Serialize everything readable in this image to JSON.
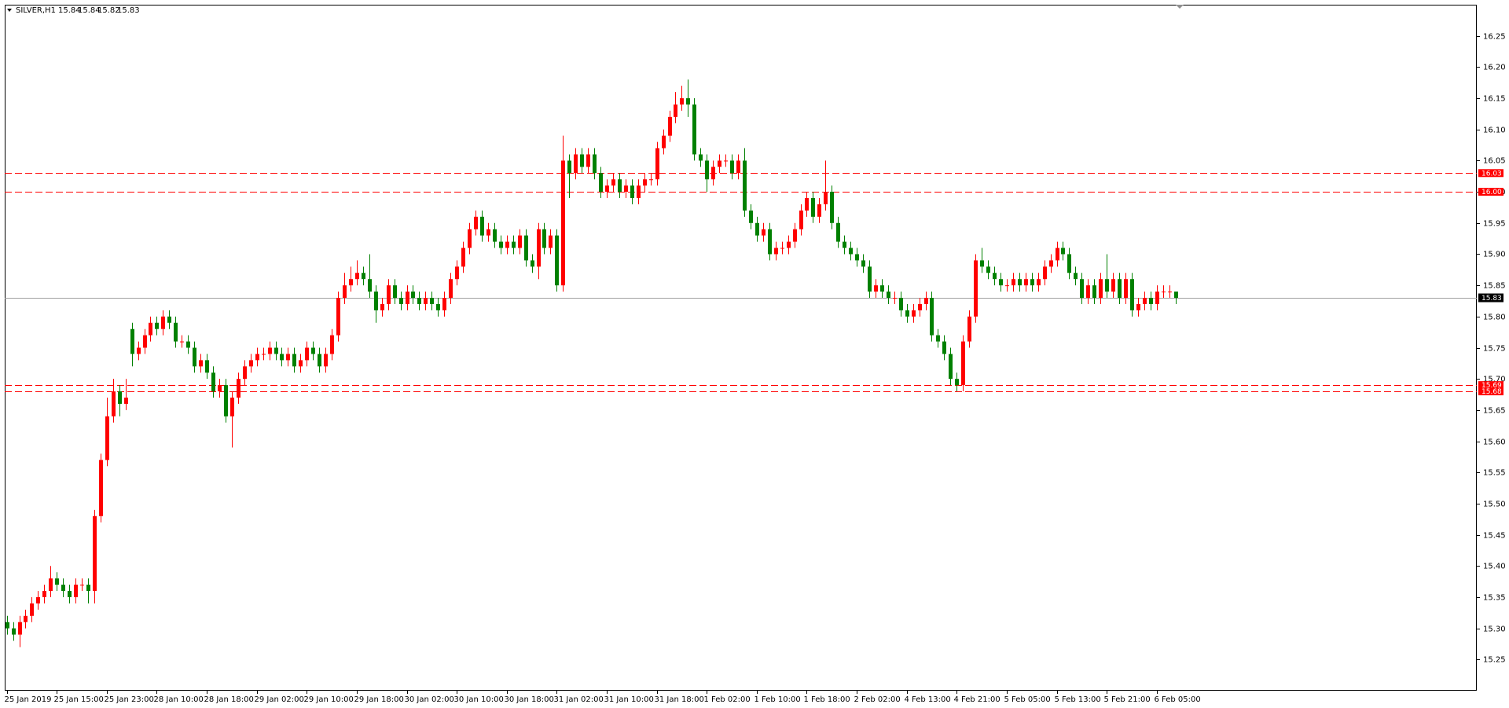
{
  "chart_data": {
    "type": "candlestick",
    "title": "SILVER,H1",
    "header_values": [
      15.84,
      15.84,
      15.82,
      15.83
    ],
    "categories": [
      "25 Jan 2019",
      null,
      null,
      null,
      null,
      null,
      null,
      null,
      "25 Jan 15:00",
      null,
      null,
      null,
      null,
      null,
      null,
      null,
      "25 Jan 23:00",
      null,
      null,
      null,
      null,
      null,
      null,
      null,
      "28 Jan 10:00",
      null,
      null,
      null,
      null,
      null,
      null,
      null,
      "28 Jan 18:00",
      null,
      null,
      null,
      null,
      null,
      null,
      null,
      "29 Jan 02:00",
      null,
      null,
      null,
      null,
      null,
      null,
      null,
      "29 Jan 10:00",
      null,
      null,
      null,
      null,
      null,
      null,
      null,
      "29 Jan 18:00",
      null,
      null,
      null,
      null,
      null,
      null,
      null,
      "30 Jan 02:00",
      null,
      null,
      null,
      null,
      null,
      null,
      null,
      "30 Jan 10:00",
      null,
      null,
      null,
      null,
      null,
      null,
      null,
      "30 Jan 18:00",
      null,
      null,
      null,
      null,
      null,
      null,
      null,
      "31 Jan 02:00",
      null,
      null,
      null,
      null,
      null,
      null,
      null,
      "31 Jan 10:00",
      null,
      null,
      null,
      null,
      null,
      null,
      null,
      "31 Jan 18:00",
      null,
      null,
      null,
      null,
      null,
      null,
      null,
      "1 Feb 02:00",
      null,
      null,
      null,
      null,
      null,
      null,
      null,
      "1 Feb 10:00",
      null,
      null,
      null,
      null,
      null,
      null,
      null,
      "1 Feb 18:00",
      null,
      null,
      null,
      null,
      null,
      null,
      null,
      "2 Feb 02:00",
      null,
      null,
      null,
      null,
      null,
      null,
      null,
      "4 Feb 13:00",
      null,
      null,
      null,
      null,
      null,
      null,
      null,
      "4 Feb 21:00",
      null,
      null,
      null,
      null,
      null,
      null,
      null,
      "5 Feb 05:00",
      null,
      null,
      null,
      null,
      null,
      null,
      null,
      "5 Feb 13:00",
      null,
      null,
      null,
      null,
      null,
      null,
      null,
      "5 Feb 21:00",
      null,
      null,
      null,
      null,
      null,
      null,
      null,
      "6 Feb 05:00",
      null,
      null,
      null
    ],
    "open": [
      15.31,
      15.3,
      15.29,
      15.31,
      15.32,
      15.34,
      15.35,
      15.36,
      15.38,
      15.37,
      15.36,
      15.35,
      15.37,
      15.37,
      15.36,
      15.48,
      15.57,
      15.64,
      15.68,
      15.66,
      15.78,
      15.74,
      15.75,
      15.77,
      15.79,
      15.78,
      15.8,
      15.79,
      15.76,
      15.76,
      15.75,
      15.72,
      15.73,
      15.71,
      15.68,
      15.69,
      15.64,
      15.67,
      15.7,
      15.72,
      15.73,
      15.74,
      15.74,
      15.75,
      15.74,
      15.73,
      15.74,
      15.72,
      15.73,
      15.75,
      15.74,
      15.72,
      15.74,
      15.77,
      15.83,
      15.85,
      15.86,
      15.87,
      15.86,
      15.84,
      15.81,
      15.82,
      15.85,
      15.83,
      15.82,
      15.84,
      15.83,
      15.82,
      15.83,
      15.82,
      15.81,
      15.83,
      15.86,
      15.88,
      15.91,
      15.94,
      15.96,
      15.93,
      15.94,
      15.92,
      15.91,
      15.92,
      15.91,
      15.93,
      15.89,
      15.88,
      15.94,
      15.91,
      15.93,
      15.85,
      16.05,
      16.03,
      16.06,
      16.04,
      16.06,
      16.03,
      16.0,
      16.01,
      16.02,
      16.0,
      16.01,
      15.99,
      16.01,
      16.02,
      16.02,
      16.07,
      16.09,
      16.12,
      16.14,
      16.15,
      16.14,
      16.06,
      16.05,
      16.02,
      16.04,
      16.05,
      16.05,
      16.03,
      16.05,
      15.97,
      15.95,
      15.93,
      15.94,
      15.9,
      15.91,
      15.91,
      15.92,
      15.94,
      15.97,
      15.99,
      15.96,
      15.98,
      16.0,
      15.95,
      15.92,
      15.91,
      15.9,
      15.89,
      15.88,
      15.84,
      15.85,
      15.84,
      15.83,
      15.83,
      15.81,
      15.8,
      15.81,
      15.82,
      15.83,
      15.77,
      15.76,
      15.74,
      15.7,
      15.69,
      15.76,
      15.8,
      15.89,
      15.88,
      15.87,
      15.86,
      15.85,
      15.85,
      15.86,
      15.85,
      15.86,
      15.85,
      15.86,
      15.88,
      15.89,
      15.91,
      15.9,
      15.87,
      15.86,
      15.83,
      15.85,
      15.83,
      15.86,
      15.84,
      15.86,
      15.83,
      15.86,
      15.81,
      15.82,
      15.83,
      15.82,
      15.84,
      15.84,
      15.84
    ],
    "high": [
      15.32,
      15.31,
      15.32,
      15.33,
      15.35,
      15.36,
      15.37,
      15.4,
      15.39,
      15.38,
      15.37,
      15.38,
      15.38,
      15.38,
      15.49,
      15.58,
      15.67,
      15.7,
      15.69,
      15.7,
      15.79,
      15.76,
      15.78,
      15.8,
      15.8,
      15.81,
      15.81,
      15.8,
      15.77,
      15.77,
      15.76,
      15.74,
      15.74,
      15.72,
      15.7,
      15.7,
      15.68,
      15.71,
      15.73,
      15.74,
      15.75,
      15.75,
      15.76,
      15.76,
      15.75,
      15.75,
      15.75,
      15.74,
      15.76,
      15.76,
      15.75,
      15.75,
      15.78,
      15.84,
      15.87,
      15.88,
      15.89,
      15.88,
      15.9,
      15.85,
      15.83,
      15.86,
      15.86,
      15.84,
      15.85,
      15.85,
      15.84,
      15.84,
      15.84,
      15.83,
      15.84,
      15.87,
      15.89,
      15.92,
      15.95,
      15.97,
      15.97,
      15.95,
      15.95,
      15.93,
      15.93,
      15.93,
      15.94,
      15.94,
      15.9,
      15.95,
      15.95,
      15.94,
      15.94,
      16.09,
      16.06,
      16.07,
      16.07,
      16.07,
      16.07,
      16.04,
      16.02,
      16.03,
      16.03,
      16.02,
      16.02,
      16.02,
      16.03,
      16.03,
      16.08,
      16.1,
      16.13,
      16.16,
      16.17,
      16.18,
      16.15,
      16.07,
      16.06,
      16.05,
      16.06,
      16.06,
      16.06,
      16.06,
      16.07,
      15.98,
      15.96,
      15.95,
      15.95,
      15.92,
      15.92,
      15.93,
      15.95,
      15.98,
      16.0,
      16.0,
      15.99,
      16.05,
      16.01,
      15.96,
      15.93,
      15.92,
      15.91,
      15.9,
      15.89,
      15.86,
      15.86,
      15.85,
      15.84,
      15.84,
      15.82,
      15.82,
      15.83,
      15.84,
      15.84,
      15.78,
      15.77,
      15.75,
      15.71,
      15.77,
      15.81,
      15.9,
      15.91,
      15.89,
      15.88,
      15.87,
      15.86,
      15.87,
      15.87,
      15.87,
      15.87,
      15.87,
      15.89,
      15.9,
      15.92,
      15.92,
      15.91,
      15.88,
      15.87,
      15.86,
      15.86,
      15.87,
      15.9,
      15.87,
      15.87,
      15.87,
      15.87,
      15.83,
      15.84,
      15.84,
      15.85,
      15.85,
      15.85,
      15.84
    ],
    "low": [
      15.29,
      15.28,
      15.27,
      15.3,
      15.31,
      15.33,
      15.34,
      15.35,
      15.36,
      15.35,
      15.34,
      15.34,
      15.36,
      15.34,
      15.34,
      15.47,
      15.56,
      15.63,
      15.64,
      15.65,
      15.72,
      15.73,
      15.74,
      15.76,
      15.77,
      15.77,
      15.78,
      15.75,
      15.75,
      15.74,
      15.71,
      15.71,
      15.7,
      15.67,
      15.67,
      15.63,
      15.59,
      15.66,
      15.69,
      15.71,
      15.72,
      15.73,
      15.73,
      15.73,
      15.72,
      15.72,
      15.71,
      15.71,
      15.72,
      15.73,
      15.71,
      15.71,
      15.73,
      15.76,
      15.82,
      15.84,
      15.85,
      15.85,
      15.83,
      15.79,
      15.8,
      15.81,
      15.82,
      15.81,
      15.81,
      15.82,
      15.81,
      15.81,
      15.81,
      15.8,
      15.8,
      15.82,
      15.85,
      15.87,
      15.9,
      15.93,
      15.92,
      15.92,
      15.91,
      15.9,
      15.9,
      15.9,
      15.9,
      15.88,
      15.87,
      15.86,
      15.9,
      15.9,
      15.84,
      15.84,
      15.99,
      16.02,
      16.03,
      16.03,
      16.02,
      15.99,
      15.99,
      16.0,
      15.99,
      15.99,
      15.98,
      15.98,
      16.0,
      16.01,
      16.01,
      16.06,
      16.08,
      16.11,
      16.13,
      16.12,
      16.05,
      16.04,
      16.0,
      16.01,
      16.03,
      16.04,
      16.02,
      16.02,
      15.96,
      15.94,
      15.92,
      15.92,
      15.89,
      15.89,
      15.9,
      15.9,
      15.91,
      15.93,
      15.96,
      15.95,
      15.95,
      15.97,
      15.94,
      15.91,
      15.9,
      15.89,
      15.88,
      15.87,
      15.83,
      15.83,
      15.83,
      15.82,
      15.82,
      15.8,
      15.79,
      15.79,
      15.8,
      15.81,
      15.76,
      15.75,
      15.73,
      15.69,
      15.68,
      15.68,
      15.75,
      15.79,
      15.87,
      15.86,
      15.85,
      15.84,
      15.84,
      15.84,
      15.84,
      15.84,
      15.84,
      15.84,
      15.85,
      15.87,
      15.88,
      15.89,
      15.86,
      15.85,
      15.82,
      15.82,
      15.82,
      15.82,
      15.83,
      15.83,
      15.82,
      15.82,
      15.8,
      15.8,
      15.81,
      15.81,
      15.81,
      15.83,
      15.83,
      15.82
    ],
    "close": [
      15.3,
      15.29,
      15.31,
      15.32,
      15.34,
      15.35,
      15.36,
      15.38,
      15.37,
      15.36,
      15.35,
      15.37,
      15.37,
      15.36,
      15.48,
      15.57,
      15.64,
      15.68,
      15.66,
      15.67,
      15.74,
      15.75,
      15.77,
      15.79,
      15.78,
      15.8,
      15.79,
      15.76,
      15.76,
      15.75,
      15.72,
      15.73,
      15.71,
      15.68,
      15.69,
      15.64,
      15.67,
      15.7,
      15.72,
      15.73,
      15.74,
      15.74,
      15.75,
      15.74,
      15.73,
      15.74,
      15.72,
      15.73,
      15.75,
      15.74,
      15.72,
      15.74,
      15.77,
      15.83,
      15.85,
      15.86,
      15.87,
      15.86,
      15.84,
      15.81,
      15.82,
      15.85,
      15.83,
      15.82,
      15.84,
      15.83,
      15.82,
      15.83,
      15.82,
      15.81,
      15.83,
      15.86,
      15.88,
      15.91,
      15.94,
      15.96,
      15.93,
      15.94,
      15.92,
      15.91,
      15.92,
      15.91,
      15.93,
      15.89,
      15.88,
      15.94,
      15.91,
      15.93,
      15.85,
      16.05,
      16.03,
      16.06,
      16.04,
      16.06,
      16.03,
      16.0,
      16.01,
      16.02,
      16.0,
      16.01,
      15.99,
      16.01,
      16.02,
      16.02,
      16.07,
      16.09,
      16.12,
      16.14,
      16.15,
      16.14,
      16.06,
      16.05,
      16.02,
      16.04,
      16.05,
      16.05,
      16.03,
      16.05,
      15.97,
      15.95,
      15.93,
      15.94,
      15.9,
      15.91,
      15.91,
      15.92,
      15.94,
      15.97,
      15.99,
      15.96,
      15.98,
      16.0,
      15.95,
      15.92,
      15.91,
      15.9,
      15.89,
      15.88,
      15.84,
      15.85,
      15.84,
      15.83,
      15.83,
      15.81,
      15.8,
      15.81,
      15.82,
      15.83,
      15.77,
      15.76,
      15.74,
      15.7,
      15.69,
      15.76,
      15.8,
      15.89,
      15.88,
      15.87,
      15.86,
      15.85,
      15.85,
      15.86,
      15.85,
      15.86,
      15.85,
      15.86,
      15.88,
      15.89,
      15.91,
      15.9,
      15.87,
      15.86,
      15.83,
      15.85,
      15.83,
      15.86,
      15.84,
      15.86,
      15.83,
      15.86,
      15.81,
      15.82,
      15.83,
      15.82,
      15.84,
      15.84,
      15.84,
      15.83
    ],
    "up_color": "#ff0000",
    "down_color": "#008000",
    "ylim": [
      15.2,
      16.3
    ],
    "yticks": [
      15.25,
      {
        "value": 15.3,
        "label": "15.30"
      },
      15.35,
      {
        "value": 15.4,
        "label": "15.40"
      },
      15.45,
      {
        "value": 15.5,
        "label": "15.50"
      },
      15.55,
      {
        "value": 15.6,
        "label": "15.60"
      },
      15.65,
      {
        "value": 15.7,
        "label": "15.70"
      },
      15.75,
      {
        "value": 15.8,
        "label": "15.80"
      },
      15.85,
      {
        "value": 15.9,
        "label": "15.90"
      },
      15.95,
      {
        "value": 16,
        "label": "16.00"
      },
      16.05,
      {
        "value": 16.1,
        "label": "16.10"
      },
      16.15,
      {
        "value": 16.2,
        "label": "16.20"
      },
      16.25
    ],
    "levels": [
      {
        "value": 16.03,
        "label": "16.03"
      },
      {
        "value": 16,
        "label": "16.00"
      },
      {
        "value": 15.69,
        "label": "15.69"
      },
      {
        "value": 15.68,
        "label": "15.68"
      }
    ],
    "level_color": "#ff0000",
    "bid": {
      "value": 15.83,
      "label": "15.83"
    },
    "bid_color": "#a0a0a0"
  }
}
